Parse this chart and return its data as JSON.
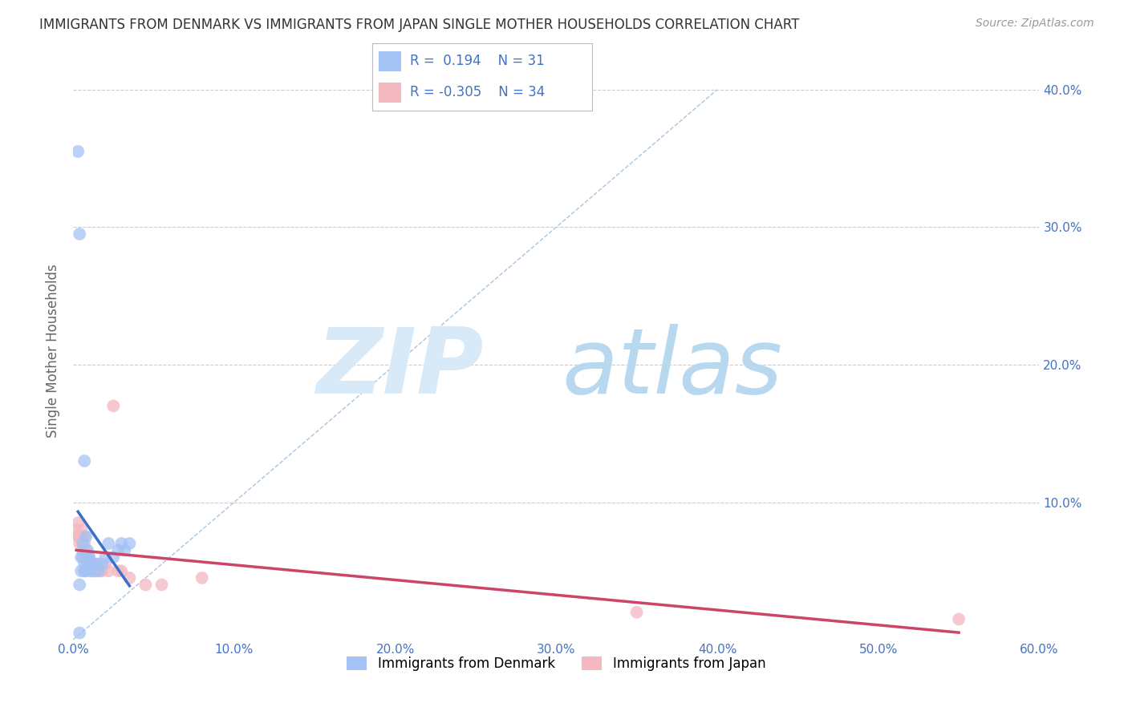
{
  "title": "IMMIGRANTS FROM DENMARK VS IMMIGRANTS FROM JAPAN SINGLE MOTHER HOUSEHOLDS CORRELATION CHART",
  "source": "Source: ZipAtlas.com",
  "ylabel": "Single Mother Households",
  "legend_denmark": "Immigrants from Denmark",
  "legend_japan": "Immigrants from Japan",
  "r_denmark": 0.194,
  "n_denmark": 31,
  "r_japan": -0.305,
  "n_japan": 34,
  "xlim": [
    0.0,
    0.6
  ],
  "ylim": [
    0.0,
    0.42
  ],
  "xticks": [
    0.0,
    0.1,
    0.2,
    0.3,
    0.4,
    0.5,
    0.6
  ],
  "yticks": [
    0.0,
    0.1,
    0.2,
    0.3,
    0.4
  ],
  "ytick_labels": [
    "",
    "10.0%",
    "20.0%",
    "30.0%",
    "40.0%"
  ],
  "xtick_labels": [
    "0.0%",
    "10.0%",
    "20.0%",
    "30.0%",
    "40.0%",
    "50.0%",
    "60.0%"
  ],
  "color_denmark": "#a4c2f4",
  "color_japan": "#f4b8c1",
  "color_denmark_line": "#3d6fc8",
  "color_japan_line": "#cc4466",
  "color_diag": "#a8c4e0",
  "background_color": "#ffffff",
  "grid_color": "#cccccc",
  "watermark_zip_color": "#d8eaf8",
  "watermark_atlas_color": "#b8d8f0",
  "title_color": "#333333",
  "axis_label_color": "#666666",
  "tick_label_color": "#4472c4",
  "denmark_x": [
    0.003,
    0.004,
    0.004,
    0.005,
    0.005,
    0.006,
    0.006,
    0.007,
    0.007,
    0.008,
    0.008,
    0.009,
    0.009,
    0.01,
    0.01,
    0.011,
    0.012,
    0.013,
    0.014,
    0.015,
    0.016,
    0.018,
    0.02,
    0.022,
    0.025,
    0.028,
    0.03,
    0.032,
    0.035,
    0.004,
    0.007
  ],
  "denmark_y": [
    0.355,
    0.005,
    0.04,
    0.06,
    0.05,
    0.07,
    0.06,
    0.055,
    0.05,
    0.075,
    0.05,
    0.065,
    0.06,
    0.055,
    0.06,
    0.05,
    0.055,
    0.05,
    0.055,
    0.055,
    0.05,
    0.055,
    0.06,
    0.07,
    0.06,
    0.065,
    0.07,
    0.065,
    0.07,
    0.295,
    0.13
  ],
  "japan_x": [
    0.002,
    0.003,
    0.003,
    0.004,
    0.004,
    0.005,
    0.005,
    0.006,
    0.006,
    0.007,
    0.007,
    0.008,
    0.008,
    0.009,
    0.009,
    0.01,
    0.011,
    0.012,
    0.013,
    0.014,
    0.015,
    0.016,
    0.018,
    0.02,
    0.022,
    0.025,
    0.028,
    0.03,
    0.035,
    0.045,
    0.055,
    0.08,
    0.35,
    0.55
  ],
  "japan_y": [
    0.08,
    0.075,
    0.085,
    0.07,
    0.075,
    0.08,
    0.075,
    0.07,
    0.065,
    0.075,
    0.07,
    0.065,
    0.06,
    0.06,
    0.055,
    0.06,
    0.055,
    0.055,
    0.05,
    0.05,
    0.055,
    0.05,
    0.05,
    0.055,
    0.05,
    0.17,
    0.05,
    0.05,
    0.045,
    0.04,
    0.04,
    0.045,
    0.02,
    0.015
  ]
}
